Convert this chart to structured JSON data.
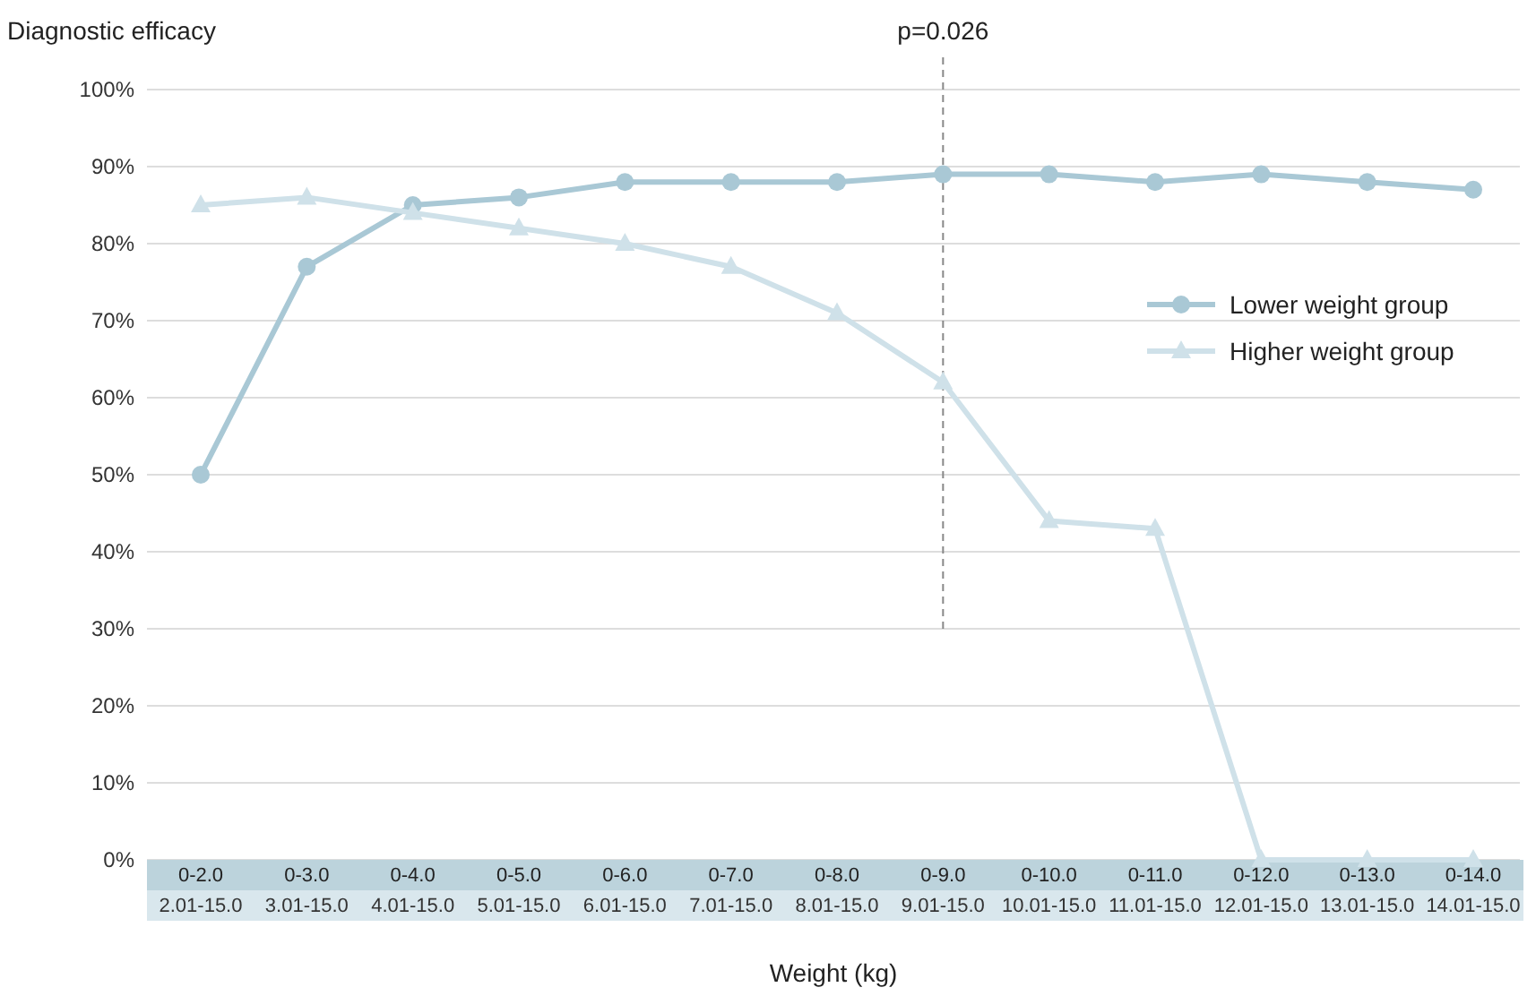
{
  "chart_data": {
    "type": "line",
    "ylabel": "Diagnostic efficacy",
    "xlabel": "Weight (kg)",
    "categories": [
      "0-2.0\n2.01-15.0",
      "0-3.0\n3.01-15.0",
      "0-4.0\n4.01-15.0",
      "0-5.0\n5.01-15.0",
      "0-6.0\n6.01-15.0",
      "0-7.0\n7.01-15.0",
      "0-8.0\n8.01-15.0",
      "0-9.0\n9.01-15.0",
      "0-10.0\n10.01-15.0",
      "0-11.0\n11.01-15.0",
      "0-12.0\n12.01-15.0",
      "0-13.0\n13.01-15.0",
      "0-14.0\n14.01-15.0"
    ],
    "series": [
      {
        "name": "Lower weight group",
        "color": "#a9c8d5",
        "marker": "circle",
        "values": [
          50,
          77,
          85,
          86,
          88,
          88,
          88,
          89,
          89,
          88,
          89,
          88,
          87
        ]
      },
      {
        "name": "Higher weight group",
        "color": "#cfe1e9",
        "marker": "triangle",
        "values": [
          85,
          86,
          84,
          82,
          80,
          77,
          71,
          62,
          44,
          43,
          0,
          0,
          0
        ]
      }
    ],
    "ylim": [
      0,
      100
    ],
    "yticks": [
      {
        "value": 0,
        "label": "0%"
      },
      {
        "value": 10,
        "label": "10%"
      },
      {
        "value": 20,
        "label": "20%"
      },
      {
        "value": 30,
        "label": "30%"
      },
      {
        "value": 40,
        "label": "40%"
      },
      {
        "value": 50,
        "label": "50%"
      },
      {
        "value": 60,
        "label": "60%"
      },
      {
        "value": 70,
        "label": "70%"
      },
      {
        "value": 80,
        "label": "80%"
      },
      {
        "value": 90,
        "label": "90%"
      },
      {
        "value": 100,
        "label": "100%"
      }
    ],
    "ref_lines": [
      {
        "axis": "x",
        "value": "0-9.0\n9.01-15.0",
        "label": "p=0.026",
        "line_style": "dashed",
        "color": "#888888"
      }
    ],
    "grid": "y",
    "legend": "right"
  }
}
